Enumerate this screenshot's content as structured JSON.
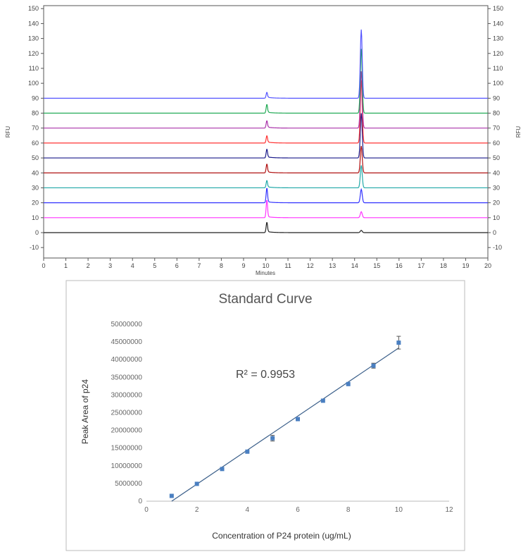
{
  "chart_data": [
    {
      "type": "line",
      "xlabel": "Minutes",
      "ylabel": "RFU",
      "ylabel_right": "RFU",
      "xlim": [
        0,
        20
      ],
      "ylim": [
        -17,
        152
      ],
      "x_ticks": [
        "0",
        "1",
        "2",
        "3",
        "4",
        "5",
        "6",
        "7",
        "8",
        "9",
        "10",
        "11",
        "12",
        "13",
        "14",
        "15",
        "16",
        "17",
        "18",
        "19",
        "20"
      ],
      "y_ticks": [
        "-10",
        "0",
        "10",
        "20",
        "30",
        "40",
        "50",
        "60",
        "70",
        "80",
        "90",
        "100",
        "110",
        "120",
        "130",
        "140",
        "150"
      ],
      "y_tick_values": [
        -10,
        0,
        10,
        20,
        30,
        40,
        50,
        60,
        70,
        80,
        90,
        100,
        110,
        120,
        130,
        140,
        150
      ],
      "grid": false,
      "series": [
        {
          "baseline": 0,
          "peak1_height": 7,
          "peak2_height": 1.5,
          "color": "#222222"
        },
        {
          "baseline": 10,
          "peak1_height": 12,
          "peak2_height": 4,
          "color": "#ff33ff"
        },
        {
          "baseline": 20,
          "peak1_height": 10,
          "peak2_height": 9,
          "color": "#3333ff"
        },
        {
          "baseline": 30,
          "peak1_height": 5,
          "peak2_height": 15,
          "color": "#20a8a8"
        },
        {
          "baseline": 40,
          "peak1_height": 6,
          "peak2_height": 18,
          "color": "#b01010"
        },
        {
          "baseline": 50,
          "peak1_height": 6,
          "peak2_height": 30,
          "color": "#1a1a8a"
        },
        {
          "baseline": 60,
          "peak1_height": 5,
          "peak2_height": 42,
          "color": "#ff3333"
        },
        {
          "baseline": 70,
          "peak1_height": 5,
          "peak2_height": 38,
          "color": "#aa33aa"
        },
        {
          "baseline": 80,
          "peak1_height": 6,
          "peak2_height": 43,
          "color": "#22aa55"
        },
        {
          "baseline": 90,
          "peak1_height": 4,
          "peak2_height": 46,
          "color": "#5555ff"
        }
      ],
      "peak1_x": 10.05,
      "peak2_x": 14.3
    },
    {
      "type": "scatter",
      "title": "Standard Curve",
      "xlabel": "Concentration of P24 protein (ug/mL)",
      "ylabel": "Peak Area of p24",
      "xlim": [
        0,
        12
      ],
      "ylim": [
        0,
        50000000
      ],
      "x_ticks": [
        "0",
        "2",
        "4",
        "6",
        "8",
        "10",
        "12"
      ],
      "x_tick_values": [
        0,
        2,
        4,
        6,
        8,
        10,
        12
      ],
      "y_ticks": [
        "0",
        "5000000",
        "10000000",
        "15000000",
        "20000000",
        "25000000",
        "30000000",
        "35000000",
        "40000000",
        "45000000",
        "50000000"
      ],
      "y_tick_values": [
        0,
        5000000,
        10000000,
        15000000,
        20000000,
        25000000,
        30000000,
        35000000,
        40000000,
        45000000,
        50000000
      ],
      "points": [
        {
          "x": 1,
          "y": 1500000
        },
        {
          "x": 2,
          "y": 4900000
        },
        {
          "x": 3,
          "y": 9100000
        },
        {
          "x": 4,
          "y": 14000000
        },
        {
          "x": 5,
          "y": 17800000
        },
        {
          "x": 6,
          "y": 23200000
        },
        {
          "x": 7,
          "y": 28400000
        },
        {
          "x": 8,
          "y": 33100000
        },
        {
          "x": 9,
          "y": 38300000
        },
        {
          "x": 10,
          "y": 44800000
        }
      ],
      "error": [
        0,
        0,
        0,
        0,
        800000,
        0,
        0,
        0,
        700000,
        1800000
      ],
      "trendline": {
        "x1": 1,
        "y1": 0,
        "x2": 10,
        "y2": 43300000
      },
      "annotation": "R² = 0.9953",
      "marker_color": "#4a7fc1",
      "line_color": "#3b5f8a",
      "grid": false
    }
  ]
}
